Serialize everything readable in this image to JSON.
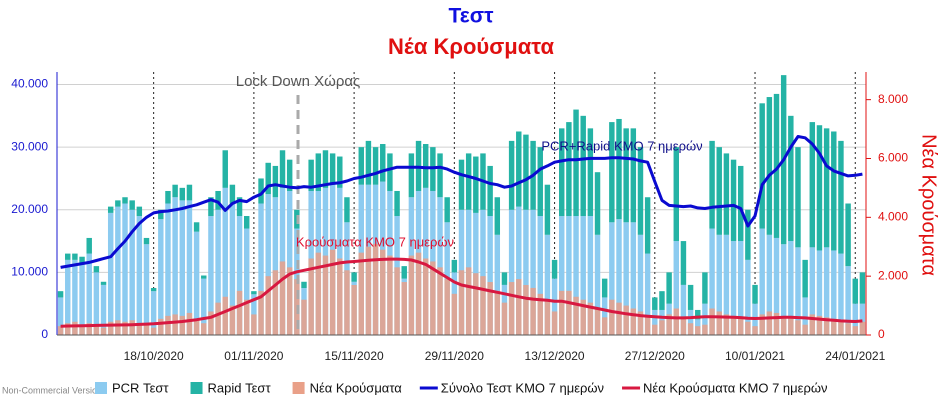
{
  "chart_data": {
    "type": "combo",
    "title": "Τεστ",
    "subtitle": "Νέα Κρούσματα",
    "y2label": "Νέα Κρούσματα",
    "watermark": "Non-Commercial Version",
    "annotations": [
      "Lock Down Χώρας",
      "PCR+Rapid ΚΜΟ 7 ημερών",
      "Κρούσματα ΚΜΟ 7 ημερών"
    ],
    "categories": [
      null,
      null,
      null,
      null,
      null,
      null,
      null,
      null,
      null,
      null,
      null,
      null,
      null,
      "18/10/2020",
      null,
      null,
      null,
      null,
      null,
      null,
      null,
      null,
      null,
      null,
      null,
      null,
      null,
      "01/11/2020",
      null,
      null,
      null,
      null,
      null,
      null,
      null,
      null,
      null,
      null,
      null,
      null,
      null,
      "15/11/2020",
      null,
      null,
      null,
      null,
      null,
      null,
      null,
      null,
      null,
      null,
      null,
      null,
      null,
      "29/11/2020",
      null,
      null,
      null,
      null,
      null,
      null,
      null,
      null,
      null,
      null,
      null,
      null,
      null,
      "13/12/2020",
      null,
      null,
      null,
      null,
      null,
      null,
      null,
      null,
      null,
      null,
      null,
      null,
      null,
      "27/12/2020",
      null,
      null,
      null,
      null,
      null,
      null,
      null,
      null,
      null,
      null,
      null,
      null,
      null,
      "10/01/2021",
      null,
      null,
      null,
      null,
      null,
      null,
      null,
      null,
      null,
      null,
      null,
      null,
      null,
      "24/01/2021",
      null
    ],
    "ylim": [
      0,
      42000
    ],
    "yticks": [
      {
        "value": 0,
        "label": "0"
      },
      {
        "value": 10000,
        "label": "10.000"
      },
      {
        "value": 20000,
        "label": "20.000"
      },
      {
        "value": 30000,
        "label": "30.000"
      },
      {
        "value": 40000,
        "label": "40.000"
      }
    ],
    "y2lim": [
      0,
      8940
    ],
    "y2ticks": [
      {
        "value": 0,
        "label": "0"
      },
      {
        "value": 2000,
        "label": "2.000"
      },
      {
        "value": 4000,
        "label": "4.000"
      },
      {
        "value": 6000,
        "label": "6.000"
      },
      {
        "value": 8000,
        "label": "8.000"
      }
    ],
    "grid": true,
    "series": [
      {
        "name": "PCR Τεστ",
        "type": "bar",
        "stack": true,
        "color": "#8ccbf0",
        "values": [
          6000,
          12000,
          12000,
          11500,
          13000,
          10000,
          8000,
          19500,
          20500,
          21000,
          20000,
          19000,
          14500,
          7000,
          18500,
          21000,
          22000,
          21500,
          21500,
          16500,
          9000,
          19000,
          20000,
          23500,
          21000,
          19000,
          17000,
          6500,
          21000,
          22500,
          22000,
          23500,
          23000,
          17000,
          7500,
          23000,
          23000,
          23500,
          24000,
          23500,
          18000,
          8500,
          24000,
          24000,
          24000,
          24500,
          23000,
          19000,
          9000,
          22000,
          23000,
          23500,
          23000,
          22000,
          18000,
          10000,
          20000,
          20000,
          19500,
          20000,
          19000,
          16000,
          8000,
          20000,
          20500,
          20000,
          20000,
          19000,
          16000,
          9000,
          19000,
          19000,
          19000,
          19000,
          19000,
          16000,
          6000,
          18000,
          18500,
          18000,
          18000,
          16000,
          13000,
          4000,
          4000,
          5000,
          15000,
          8000,
          4000,
          2500,
          5000,
          17000,
          16000,
          16000,
          15000,
          15000,
          12000,
          5000,
          17000,
          16000,
          15500,
          14500,
          15000,
          14000,
          6000,
          14000,
          13500,
          14000,
          13500,
          13000,
          11000,
          5000,
          5000
        ]
      },
      {
        "name": "Rapid Τεστ",
        "type": "bar",
        "stack": true,
        "color": "#24b3a5",
        "values": [
          1000,
          1000,
          1000,
          1000,
          2500,
          1000,
          500,
          1000,
          1000,
          1000,
          1500,
          1500,
          1000,
          500,
          1500,
          2000,
          2000,
          2000,
          2500,
          1500,
          500,
          3000,
          3000,
          6000,
          3000,
          3000,
          2000,
          500,
          4000,
          5000,
          5000,
          6000,
          5000,
          3000,
          1000,
          5000,
          6000,
          6000,
          5000,
          5000,
          4000,
          1500,
          6000,
          7000,
          6000,
          6000,
          6000,
          4000,
          2000,
          7000,
          8000,
          7000,
          7000,
          7000,
          4000,
          2000,
          8000,
          9000,
          9000,
          9000,
          8000,
          6000,
          2000,
          11000,
          12000,
          12000,
          11000,
          11000,
          8000,
          3000,
          14000,
          15000,
          17000,
          16000,
          14000,
          10000,
          3000,
          16000,
          16000,
          15000,
          15000,
          14000,
          9000,
          2000,
          3000,
          5000,
          15000,
          7000,
          4000,
          1500,
          5000,
          14000,
          14000,
          13000,
          13000,
          12000,
          8000,
          3000,
          20000,
          22000,
          23000,
          27000,
          20000,
          16000,
          6000,
          20000,
          20000,
          19000,
          19000,
          18000,
          10000,
          4000,
          5000
        ]
      },
      {
        "name": "Νέα Κρούσματα",
        "type": "bar",
        "axis": "y2",
        "color": "#e9a088",
        "values": [
          300,
          400,
          450,
          350,
          400,
          300,
          250,
          450,
          500,
          450,
          500,
          400,
          350,
          250,
          550,
          650,
          700,
          650,
          750,
          500,
          400,
          800,
          1100,
          1300,
          1000,
          1500,
          1200,
          700,
          1500,
          2000,
          2200,
          2500,
          2300,
          1900,
          1200,
          2600,
          2800,
          2700,
          2900,
          2600,
          2200,
          1700,
          2800,
          3000,
          3100,
          2900,
          2700,
          2300,
          1800,
          2700,
          2800,
          2600,
          2500,
          2300,
          1900,
          1400,
          2200,
          2300,
          2100,
          2000,
          1800,
          1500,
          1100,
          1800,
          1900,
          1700,
          1600,
          1400,
          1200,
          800,
          1500,
          1500,
          1300,
          1200,
          1100,
          900,
          600,
          1200,
          1100,
          1000,
          900,
          800,
          650,
          350,
          500,
          700,
          900,
          600,
          400,
          300,
          350,
          900,
          800,
          700,
          650,
          600,
          450,
          300,
          700,
          800,
          750,
          650,
          600,
          500,
          350,
          700,
          650,
          600,
          550,
          500,
          400,
          300,
          450
        ]
      },
      {
        "name": "Σύνολο Τεστ ΚΜΟ 7 ημερών",
        "type": "line",
        "color": "#0a0ad0",
        "values": [
          10800,
          11000,
          11200,
          11400,
          11600,
          11900,
          12200,
          12500,
          13800,
          15000,
          16500,
          17800,
          18800,
          19500,
          19700,
          19800,
          20000,
          20200,
          20500,
          20800,
          21200,
          21600,
          21200,
          19900,
          21000,
          21500,
          21300,
          22000,
          22500,
          23800,
          24000,
          23800,
          23600,
          23500,
          23700,
          23600,
          23800,
          24000,
          24200,
          24300,
          24600,
          25000,
          25200,
          25500,
          25800,
          26200,
          26500,
          26800,
          26800,
          26800,
          26800,
          26700,
          26700,
          26800,
          26500,
          26000,
          25600,
          25300,
          25000,
          24600,
          24200,
          24000,
          23600,
          23800,
          24300,
          24800,
          25500,
          26500,
          27000,
          27600,
          27800,
          28000,
          28000,
          28100,
          28200,
          28200,
          28200,
          28300,
          28300,
          28200,
          28100,
          27800,
          27600,
          24500,
          21500,
          20700,
          20600,
          20500,
          20600,
          20300,
          20200,
          20400,
          20500,
          20600,
          20700,
          20200,
          17400,
          19000,
          24000,
          25500,
          26500,
          28000,
          30000,
          31700,
          31500,
          30500,
          29000,
          27000,
          26200,
          25800,
          25400,
          25500,
          25700
        ]
      },
      {
        "name": "Νέα Κρούσματα ΚΜΟ 7 ημερών",
        "type": "line",
        "axis": "y2",
        "color": "#d81840",
        "values": [
          300,
          305,
          310,
          315,
          320,
          325,
          330,
          335,
          340,
          345,
          350,
          360,
          370,
          380,
          400,
          420,
          440,
          460,
          490,
          520,
          560,
          600,
          700,
          800,
          900,
          1000,
          1100,
          1200,
          1300,
          1500,
          1700,
          1900,
          2070,
          2150,
          2200,
          2250,
          2300,
          2350,
          2400,
          2450,
          2480,
          2500,
          2520,
          2540,
          2560,
          2570,
          2580,
          2580,
          2570,
          2550,
          2480,
          2400,
          2250,
          2100,
          1950,
          1800,
          1700,
          1650,
          1600,
          1550,
          1500,
          1450,
          1400,
          1350,
          1300,
          1250,
          1220,
          1200,
          1180,
          1150,
          1150,
          1100,
          1050,
          1000,
          950,
          900,
          850,
          800,
          760,
          720,
          690,
          660,
          640,
          620,
          600,
          590,
          580,
          580,
          590,
          610,
          620,
          620,
          615,
          610,
          600,
          590,
          570,
          560,
          570,
          580,
          590,
          600,
          600,
          590,
          580,
          560,
          540,
          520,
          500,
          480,
          470,
          460,
          480
        ]
      }
    ]
  }
}
